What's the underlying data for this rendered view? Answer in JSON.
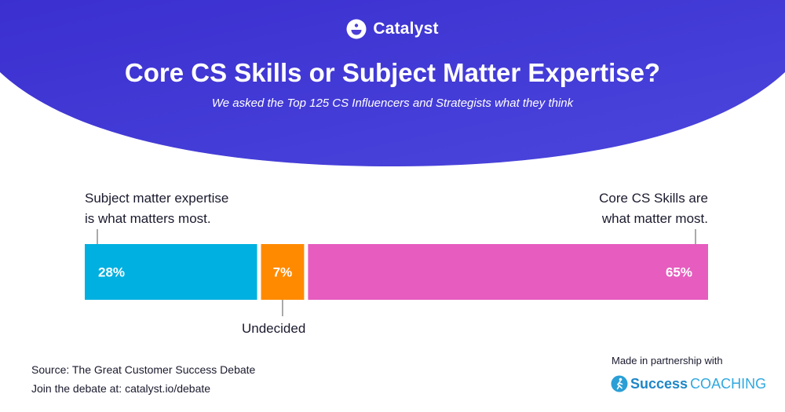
{
  "brand": {
    "name": "Catalyst",
    "header_color": "#4a3fd6"
  },
  "header": {
    "title": "Core CS Skills or Subject Matter Expertise?",
    "subtitle": "We asked the Top 125 CS Influencers and Strategists what they think"
  },
  "annotations": {
    "left_line1": "Subject matter expertise",
    "left_line2": "is what matters most.",
    "right_line1": "Core CS Skills are",
    "right_line2": "what matter most.",
    "bottom": "Undecided"
  },
  "chart_data": {
    "type": "bar",
    "orientation": "horizontal-stacked",
    "categories": [
      "Subject matter expertise",
      "Undecided",
      "Core CS Skills"
    ],
    "values": [
      28,
      7,
      65
    ],
    "labels": [
      "28%",
      "7%",
      "65%"
    ],
    "colors": [
      "#00b0e0",
      "#ff8a00",
      "#e65cbf"
    ],
    "unit": "%"
  },
  "footer": {
    "source": "Source: The Great Customer Success Debate",
    "join": "Join the debate at: catalyst.io/debate"
  },
  "partner": {
    "label": "Made in partnership with",
    "logo_strong": "Success",
    "logo_light": "COACHING",
    "icon": "runner-icon"
  }
}
